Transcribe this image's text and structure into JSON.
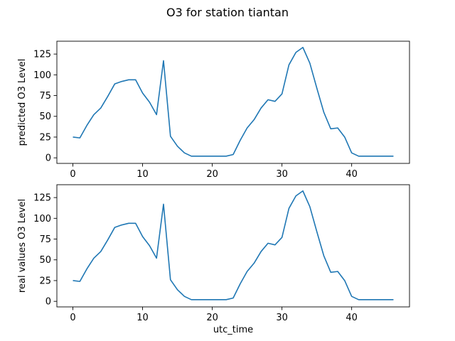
{
  "figure": {
    "title": "O3 for station tiantan"
  },
  "chart_data": [
    {
      "type": "line",
      "title": "",
      "xlabel": "",
      "ylabel": "predicted O3 Level",
      "xlim": [
        -2.3,
        48.3
      ],
      "ylim": [
        -6.7,
        140.5
      ],
      "xticks": [
        0,
        10,
        20,
        30,
        40
      ],
      "yticks": [
        0,
        25,
        50,
        75,
        100,
        125
      ],
      "grid": false,
      "color": "#1f77b4",
      "series": [
        {
          "x": [
            0,
            1,
            2,
            3,
            4,
            5,
            6,
            7,
            8,
            9,
            10,
            11,
            12,
            13,
            14,
            15,
            16,
            17,
            18,
            19,
            20,
            21,
            22,
            23,
            24,
            25,
            26,
            27,
            28,
            29,
            30,
            31,
            32,
            33,
            34,
            35,
            36,
            37,
            38,
            39,
            40,
            41,
            42,
            43,
            44,
            45,
            46
          ],
          "values": [
            25,
            24,
            39,
            52,
            60,
            74,
            89,
            92,
            94,
            94,
            78,
            67,
            52,
            117,
            26,
            14,
            6,
            2,
            2,
            2,
            2,
            2,
            2,
            4,
            21,
            36,
            46,
            60,
            70,
            68,
            77,
            112,
            127,
            133,
            114,
            84,
            55,
            35,
            36,
            25,
            6,
            2,
            2,
            2,
            2,
            2,
            2
          ]
        }
      ]
    },
    {
      "type": "line",
      "title": "",
      "xlabel": "utc_time",
      "ylabel": "real values O3 Level",
      "xlim": [
        -2.3,
        48.3
      ],
      "ylim": [
        -6.7,
        140.5
      ],
      "xticks": [
        0,
        10,
        20,
        30,
        40
      ],
      "yticks": [
        0,
        25,
        50,
        75,
        100,
        125
      ],
      "grid": false,
      "color": "#1f77b4",
      "series": [
        {
          "x": [
            0,
            1,
            2,
            3,
            4,
            5,
            6,
            7,
            8,
            9,
            10,
            11,
            12,
            13,
            14,
            15,
            16,
            17,
            18,
            19,
            20,
            21,
            22,
            23,
            24,
            25,
            26,
            27,
            28,
            29,
            30,
            31,
            32,
            33,
            34,
            35,
            36,
            37,
            38,
            39,
            40,
            41,
            42,
            43,
            44,
            45,
            46
          ],
          "values": [
            25,
            24,
            39,
            52,
            60,
            74,
            89,
            92,
            94,
            94,
            78,
            67,
            52,
            117,
            26,
            14,
            6,
            2,
            2,
            2,
            2,
            2,
            2,
            4,
            21,
            36,
            46,
            60,
            70,
            68,
            77,
            112,
            127,
            133,
            114,
            84,
            55,
            35,
            36,
            25,
            6,
            2,
            2,
            2,
            2,
            2,
            2
          ]
        }
      ]
    }
  ]
}
